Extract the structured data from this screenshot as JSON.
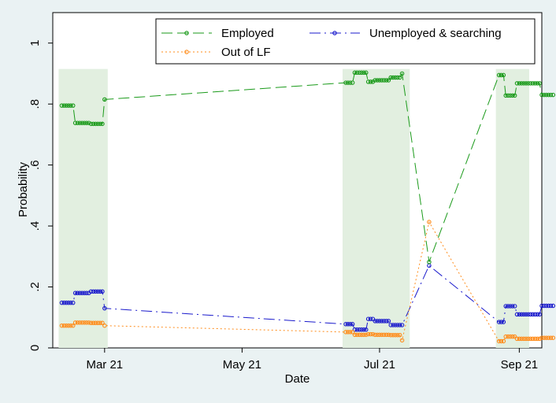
{
  "chart_data": {
    "type": "line",
    "title": "",
    "xlabel": "Date",
    "ylabel": "Probability",
    "ylim": [
      0,
      1.1
    ],
    "xlim": [
      "2021-02-06",
      "2021-09-11"
    ],
    "yticks": [
      0,
      0.2,
      0.4,
      0.6,
      0.8,
      1
    ],
    "ytick_labels": [
      "0",
      ".2",
      ".4",
      ".6",
      ".8",
      "1"
    ],
    "xticks": [
      "2021-03-01",
      "2021-05-01",
      "2021-07-01",
      "2021-09-01"
    ],
    "xtick_labels": [
      "Mar 21",
      "May 21",
      "Jul 21",
      "Sep 21"
    ],
    "grid": false,
    "legend_position": "top",
    "shaded_periods": [
      {
        "start": "2021-02-10",
        "end": "2021-03-01",
        "top": 0.915
      },
      {
        "start": "2021-06-16",
        "end": "2021-07-13",
        "top": 0.915
      },
      {
        "start": "2021-08-23",
        "end": "2021-09-04",
        "top": 0.915
      }
    ],
    "series": [
      {
        "name": "Employed",
        "color": "#1a9a1a",
        "dash": "long-dash",
        "points": [
          [
            "2021-02-10",
            0.795
          ],
          [
            "2021-02-11",
            0.795
          ],
          [
            "2021-02-12",
            0.795
          ],
          [
            "2021-02-13",
            0.795
          ],
          [
            "2021-02-14",
            0.795
          ],
          [
            "2021-02-15",
            0.795
          ],
          [
            "2021-02-16",
            0.738
          ],
          [
            "2021-02-17",
            0.738
          ],
          [
            "2021-02-18",
            0.738
          ],
          [
            "2021-02-19",
            0.738
          ],
          [
            "2021-02-20",
            0.738
          ],
          [
            "2021-02-21",
            0.738
          ],
          [
            "2021-02-22",
            0.738
          ],
          [
            "2021-02-23",
            0.735
          ],
          [
            "2021-02-24",
            0.735
          ],
          [
            "2021-02-25",
            0.735
          ],
          [
            "2021-02-26",
            0.735
          ],
          [
            "2021-02-27",
            0.735
          ],
          [
            "2021-02-28",
            0.735
          ],
          [
            "2021-03-01",
            0.815
          ],
          [
            "2021-06-16",
            0.87
          ],
          [
            "2021-06-17",
            0.87
          ],
          [
            "2021-06-18",
            0.87
          ],
          [
            "2021-06-19",
            0.87
          ],
          [
            "2021-06-20",
            0.903
          ],
          [
            "2021-06-21",
            0.903
          ],
          [
            "2021-06-22",
            0.903
          ],
          [
            "2021-06-23",
            0.903
          ],
          [
            "2021-06-24",
            0.903
          ],
          [
            "2021-06-25",
            0.903
          ],
          [
            "2021-06-26",
            0.873
          ],
          [
            "2021-06-27",
            0.873
          ],
          [
            "2021-06-28",
            0.873
          ],
          [
            "2021-06-29",
            0.878
          ],
          [
            "2021-06-30",
            0.878
          ],
          [
            "2021-07-01",
            0.878
          ],
          [
            "2021-07-02",
            0.878
          ],
          [
            "2021-07-03",
            0.878
          ],
          [
            "2021-07-04",
            0.878
          ],
          [
            "2021-07-05",
            0.878
          ],
          [
            "2021-07-06",
            0.887
          ],
          [
            "2021-07-07",
            0.887
          ],
          [
            "2021-07-08",
            0.887
          ],
          [
            "2021-07-09",
            0.887
          ],
          [
            "2021-07-10",
            0.887
          ],
          [
            "2021-07-11",
            0.9
          ],
          [
            "2021-07-23",
            0.282
          ],
          [
            "2021-08-23",
            0.895
          ],
          [
            "2021-08-24",
            0.895
          ],
          [
            "2021-08-25",
            0.895
          ],
          [
            "2021-08-26",
            0.828
          ],
          [
            "2021-08-27",
            0.828
          ],
          [
            "2021-08-28",
            0.828
          ],
          [
            "2021-08-29",
            0.828
          ],
          [
            "2021-08-30",
            0.828
          ],
          [
            "2021-08-31",
            0.868
          ],
          [
            "2021-09-01",
            0.868
          ],
          [
            "2021-09-02",
            0.868
          ],
          [
            "2021-09-03",
            0.868
          ],
          [
            "2021-09-04",
            0.868
          ],
          [
            "2021-09-05",
            0.868
          ],
          [
            "2021-09-06",
            0.868
          ],
          [
            "2021-09-07",
            0.868
          ],
          [
            "2021-09-08",
            0.868
          ],
          [
            "2021-09-09",
            0.868
          ],
          [
            "2021-09-10",
            0.868
          ],
          [
            "2021-09-11",
            0.83
          ],
          [
            "2021-09-12",
            0.83
          ],
          [
            "2021-09-13",
            0.83
          ],
          [
            "2021-09-14",
            0.83
          ],
          [
            "2021-09-15",
            0.83
          ],
          [
            "2021-09-16",
            0.83
          ]
        ]
      },
      {
        "name": "Unemployed & searching",
        "color": "#1a1acc",
        "dash": "long-dash-dot",
        "points": [
          [
            "2021-02-10",
            0.148
          ],
          [
            "2021-02-11",
            0.148
          ],
          [
            "2021-02-12",
            0.148
          ],
          [
            "2021-02-13",
            0.148
          ],
          [
            "2021-02-14",
            0.148
          ],
          [
            "2021-02-15",
            0.148
          ],
          [
            "2021-02-16",
            0.18
          ],
          [
            "2021-02-17",
            0.18
          ],
          [
            "2021-02-18",
            0.18
          ],
          [
            "2021-02-19",
            0.18
          ],
          [
            "2021-02-20",
            0.18
          ],
          [
            "2021-02-21",
            0.18
          ],
          [
            "2021-02-22",
            0.18
          ],
          [
            "2021-02-23",
            0.185
          ],
          [
            "2021-02-24",
            0.185
          ],
          [
            "2021-02-25",
            0.185
          ],
          [
            "2021-02-26",
            0.185
          ],
          [
            "2021-02-27",
            0.185
          ],
          [
            "2021-02-28",
            0.185
          ],
          [
            "2021-03-01",
            0.13
          ],
          [
            "2021-06-16",
            0.078
          ],
          [
            "2021-06-17",
            0.078
          ],
          [
            "2021-06-18",
            0.078
          ],
          [
            "2021-06-19",
            0.078
          ],
          [
            "2021-06-20",
            0.06
          ],
          [
            "2021-06-21",
            0.06
          ],
          [
            "2021-06-22",
            0.06
          ],
          [
            "2021-06-23",
            0.06
          ],
          [
            "2021-06-24",
            0.06
          ],
          [
            "2021-06-25",
            0.06
          ],
          [
            "2021-06-26",
            0.095
          ],
          [
            "2021-06-27",
            0.095
          ],
          [
            "2021-06-28",
            0.095
          ],
          [
            "2021-06-29",
            0.088
          ],
          [
            "2021-06-30",
            0.088
          ],
          [
            "2021-07-01",
            0.088
          ],
          [
            "2021-07-02",
            0.088
          ],
          [
            "2021-07-03",
            0.088
          ],
          [
            "2021-07-04",
            0.088
          ],
          [
            "2021-07-05",
            0.088
          ],
          [
            "2021-07-06",
            0.075
          ],
          [
            "2021-07-07",
            0.075
          ],
          [
            "2021-07-08",
            0.075
          ],
          [
            "2021-07-09",
            0.075
          ],
          [
            "2021-07-10",
            0.075
          ],
          [
            "2021-07-11",
            0.075
          ],
          [
            "2021-07-23",
            0.27
          ],
          [
            "2021-08-23",
            0.085
          ],
          [
            "2021-08-24",
            0.085
          ],
          [
            "2021-08-25",
            0.085
          ],
          [
            "2021-08-26",
            0.137
          ],
          [
            "2021-08-27",
            0.137
          ],
          [
            "2021-08-28",
            0.137
          ],
          [
            "2021-08-29",
            0.137
          ],
          [
            "2021-08-30",
            0.137
          ],
          [
            "2021-08-31",
            0.11
          ],
          [
            "2021-09-01",
            0.11
          ],
          [
            "2021-09-02",
            0.11
          ],
          [
            "2021-09-03",
            0.11
          ],
          [
            "2021-09-04",
            0.11
          ],
          [
            "2021-09-05",
            0.11
          ],
          [
            "2021-09-06",
            0.11
          ],
          [
            "2021-09-07",
            0.11
          ],
          [
            "2021-09-08",
            0.11
          ],
          [
            "2021-09-09",
            0.11
          ],
          [
            "2021-09-10",
            0.11
          ],
          [
            "2021-09-11",
            0.138
          ],
          [
            "2021-09-12",
            0.138
          ],
          [
            "2021-09-13",
            0.138
          ],
          [
            "2021-09-14",
            0.138
          ],
          [
            "2021-09-15",
            0.138
          ],
          [
            "2021-09-16",
            0.138
          ]
        ]
      },
      {
        "name": "Out of LF",
        "color": "#ff8c1a",
        "dash": "dotted",
        "points": [
          [
            "2021-02-10",
            0.073
          ],
          [
            "2021-02-11",
            0.073
          ],
          [
            "2021-02-12",
            0.073
          ],
          [
            "2021-02-13",
            0.073
          ],
          [
            "2021-02-14",
            0.073
          ],
          [
            "2021-02-15",
            0.073
          ],
          [
            "2021-02-16",
            0.083
          ],
          [
            "2021-02-17",
            0.083
          ],
          [
            "2021-02-18",
            0.083
          ],
          [
            "2021-02-19",
            0.083
          ],
          [
            "2021-02-20",
            0.083
          ],
          [
            "2021-02-21",
            0.083
          ],
          [
            "2021-02-22",
            0.083
          ],
          [
            "2021-02-23",
            0.082
          ],
          [
            "2021-02-24",
            0.082
          ],
          [
            "2021-02-25",
            0.082
          ],
          [
            "2021-02-26",
            0.082
          ],
          [
            "2021-02-27",
            0.082
          ],
          [
            "2021-02-28",
            0.082
          ],
          [
            "2021-03-01",
            0.073
          ],
          [
            "2021-06-16",
            0.052
          ],
          [
            "2021-06-17",
            0.052
          ],
          [
            "2021-06-18",
            0.052
          ],
          [
            "2021-06-19",
            0.052
          ],
          [
            "2021-06-20",
            0.043
          ],
          [
            "2021-06-21",
            0.043
          ],
          [
            "2021-06-22",
            0.043
          ],
          [
            "2021-06-23",
            0.043
          ],
          [
            "2021-06-24",
            0.043
          ],
          [
            "2021-06-25",
            0.043
          ],
          [
            "2021-06-26",
            0.045
          ],
          [
            "2021-06-27",
            0.045
          ],
          [
            "2021-06-28",
            0.045
          ],
          [
            "2021-06-29",
            0.043
          ],
          [
            "2021-06-30",
            0.043
          ],
          [
            "2021-07-01",
            0.043
          ],
          [
            "2021-07-02",
            0.043
          ],
          [
            "2021-07-03",
            0.043
          ],
          [
            "2021-07-04",
            0.043
          ],
          [
            "2021-07-05",
            0.043
          ],
          [
            "2021-07-06",
            0.042
          ],
          [
            "2021-07-07",
            0.042
          ],
          [
            "2021-07-08",
            0.042
          ],
          [
            "2021-07-09",
            0.042
          ],
          [
            "2021-07-10",
            0.042
          ],
          [
            "2021-07-11",
            0.025
          ],
          [
            "2021-07-23",
            0.413
          ],
          [
            "2021-08-23",
            0.022
          ],
          [
            "2021-08-24",
            0.022
          ],
          [
            "2021-08-25",
            0.022
          ],
          [
            "2021-08-26",
            0.037
          ],
          [
            "2021-08-27",
            0.037
          ],
          [
            "2021-08-28",
            0.037
          ],
          [
            "2021-08-29",
            0.037
          ],
          [
            "2021-08-30",
            0.037
          ],
          [
            "2021-08-31",
            0.03
          ],
          [
            "2021-09-01",
            0.03
          ],
          [
            "2021-09-02",
            0.03
          ],
          [
            "2021-09-03",
            0.03
          ],
          [
            "2021-09-04",
            0.03
          ],
          [
            "2021-09-05",
            0.03
          ],
          [
            "2021-09-06",
            0.03
          ],
          [
            "2021-09-07",
            0.03
          ],
          [
            "2021-09-08",
            0.03
          ],
          [
            "2021-09-09",
            0.03
          ],
          [
            "2021-09-10",
            0.03
          ],
          [
            "2021-09-11",
            0.033
          ],
          [
            "2021-09-12",
            0.033
          ],
          [
            "2021-09-13",
            0.033
          ],
          [
            "2021-09-14",
            0.033
          ],
          [
            "2021-09-15",
            0.033
          ],
          [
            "2021-09-16",
            0.033
          ]
        ]
      }
    ]
  }
}
